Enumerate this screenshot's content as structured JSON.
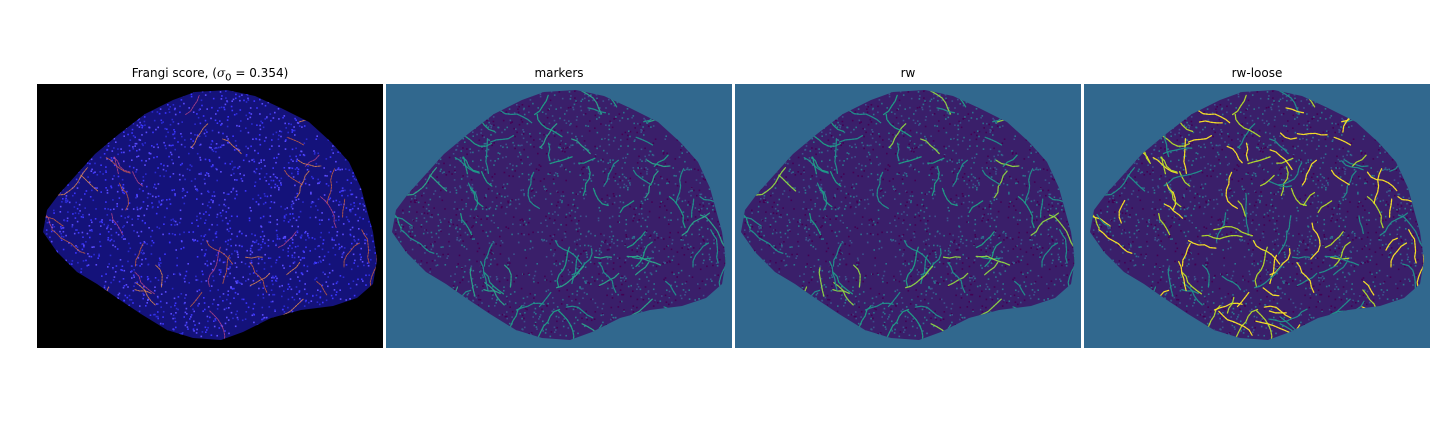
{
  "figure": {
    "panels": [
      {
        "id": "frangi",
        "title_prefix": "Frangi score, (",
        "title_sigma": "σ",
        "title_sub": "0",
        "title_suffix": " = 0.354)",
        "background": "#000000",
        "blob_color": "#14127a",
        "speckle_colors": [
          "#2a2ad0",
          "#3b36ff",
          "#5a4cff"
        ],
        "vessel_colors": [
          "#e06a3a",
          "#c84b8a",
          "#ff9a4a"
        ]
      },
      {
        "id": "markers",
        "title": "markers",
        "background": "#31688e",
        "blob_color": "#3a1f6a",
        "speckle_colors": [
          "#440154",
          "#3b528b",
          "#2c728e"
        ],
        "vessel_colors": [
          "#21918c",
          "#1fa187",
          "#2ca58a"
        ]
      },
      {
        "id": "rw",
        "title": "rw",
        "background": "#31688e",
        "blob_color": "#3a1f6a",
        "speckle_colors": [
          "#440154",
          "#3b528b",
          "#2c728e"
        ],
        "vessel_colors": [
          "#21918c",
          "#1fa187",
          "#8fd744"
        ]
      },
      {
        "id": "rw-loose",
        "title": "rw-loose",
        "background": "#31688e",
        "blob_color": "#3a1f6a",
        "speckle_colors": [
          "#440154",
          "#3b528b",
          "#2c728e"
        ],
        "vessel_colors": [
          "#fde725",
          "#b5de2b",
          "#21918c"
        ]
      }
    ]
  }
}
